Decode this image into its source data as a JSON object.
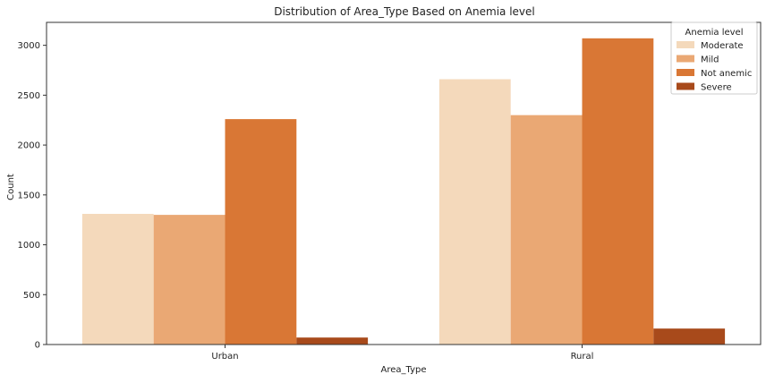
{
  "chart_data": {
    "type": "bar",
    "title": "Distribution of Area_Type Based on Anemia level",
    "xlabel": "Area_Type",
    "ylabel": "Count",
    "categories": [
      "Urban",
      "Rural"
    ],
    "ylim": [
      0,
      3230
    ],
    "yticks": [
      0,
      500,
      1000,
      1500,
      2000,
      2500,
      3000
    ],
    "grid": false,
    "legend": {
      "title": "Anemia level",
      "placement": "top-right"
    },
    "series": [
      {
        "name": "Moderate",
        "color": "#f4d9bb",
        "values": [
          1310,
          2660
        ]
      },
      {
        "name": "Mild",
        "color": "#eaa874",
        "values": [
          1300,
          2300
        ]
      },
      {
        "name": "Not anemic",
        "color": "#d97735",
        "values": [
          2260,
          3070
        ]
      },
      {
        "name": "Severe",
        "color": "#a84a1b",
        "values": [
          70,
          160
        ]
      }
    ]
  }
}
